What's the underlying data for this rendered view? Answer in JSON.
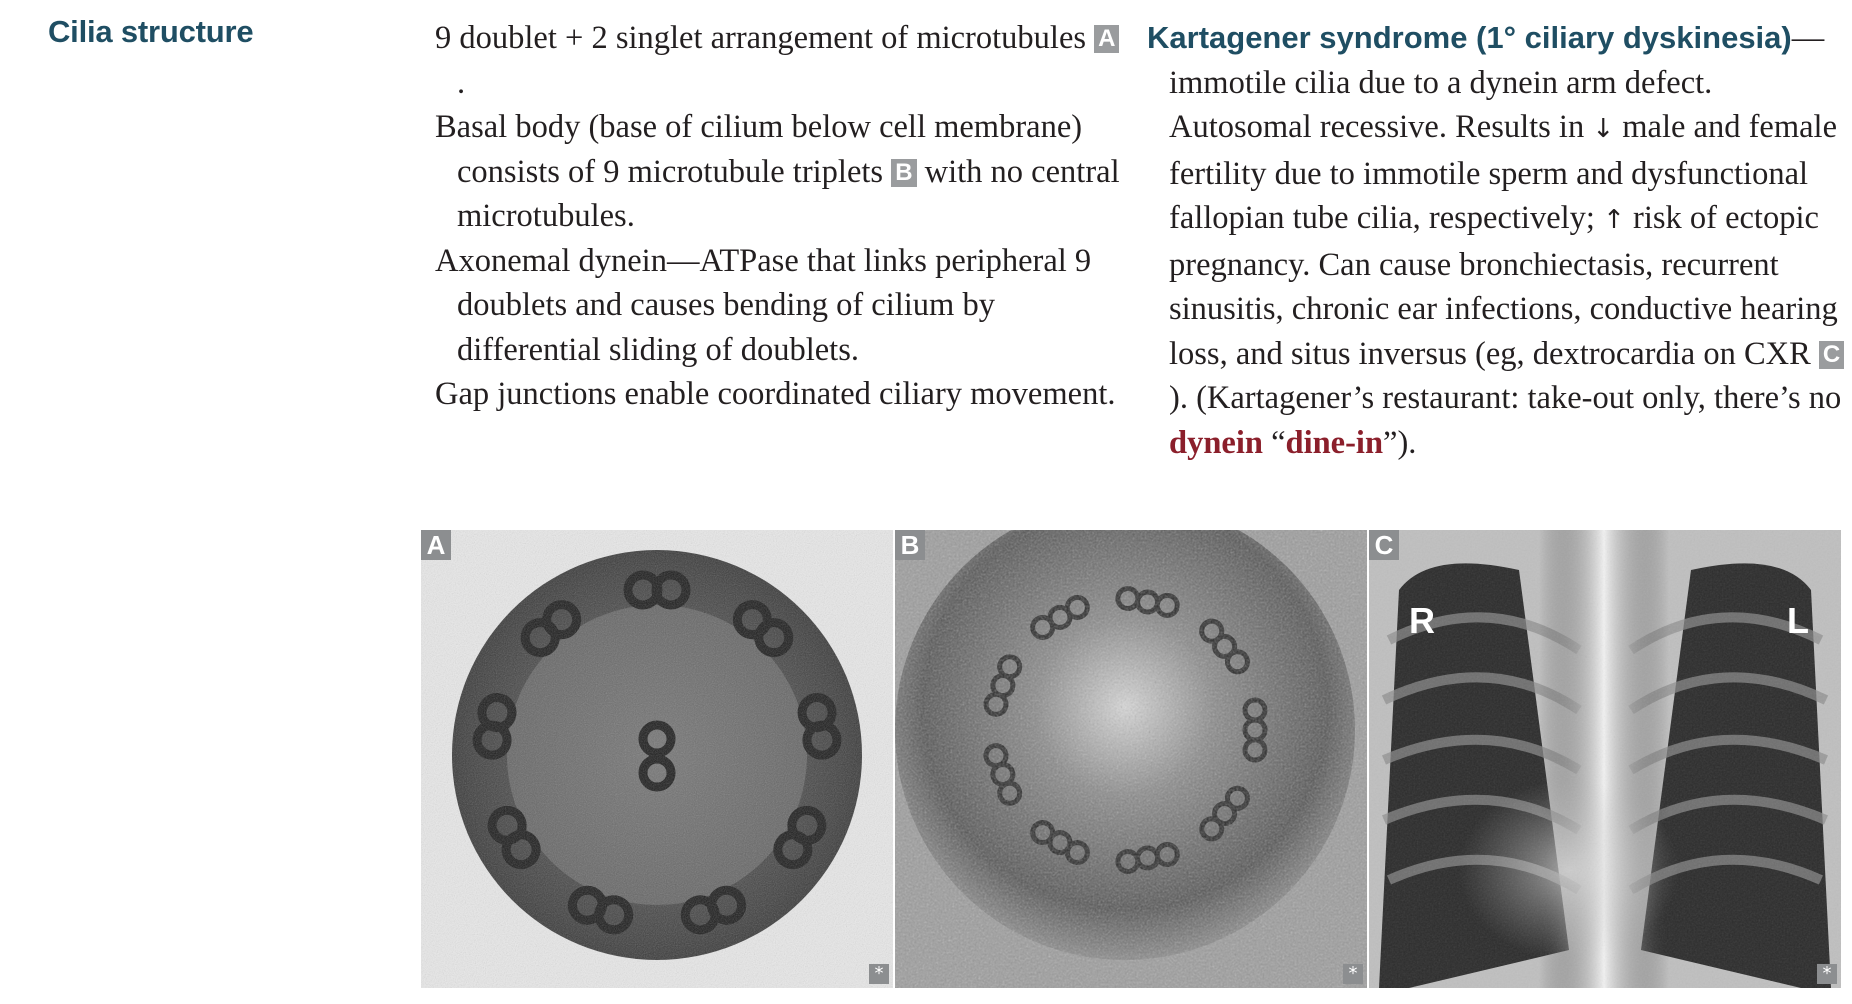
{
  "heading": "Cilia structure",
  "left_column": {
    "p1_text": "9 doublet + 2 singlet arrangement of microtubules",
    "p1_ref": "A",
    "p1_end": ".",
    "p2_text": "Basal body (base of cilium below cell membrane) consists of 9 microtubule triplets",
    "p2_ref": "B",
    "p2_end": " with no central microtubules.",
    "p3_text": "Axonemal dynein—ATPase that links peripheral 9 doublets and causes bending of cilium by differential sliding of doublets.",
    "p4_text": "Gap junctions enable coordinated ciliary movement."
  },
  "right_column": {
    "title": "Kartagener syndrome (1° ciliary dyskinesia)",
    "title_dash": "—",
    "text1": "immotile cilia due to a dynein arm defect. Autosomal recessive. Results in",
    "arrow_down": "↓",
    "text2": " male and female fertility due to immotile sperm and dysfunctional fallopian tube cilia, respectively; ",
    "arrow_up": "↑",
    "text3": " risk of ectopic pregnancy. Can cause bronchiectasis, recurrent sinusitis, chronic ear infections, conductive hearing loss, and situs inversus (eg, dextrocardia on CXR ",
    "ref_c": "C",
    "text4": "). (Kartagener’s restaurant: take-out only, there’s no ",
    "dynein": "dynein",
    "text5": " “",
    "dine_in": "dine-in",
    "text6": "”)."
  },
  "panels": {
    "a_label": "A",
    "b_label": "B",
    "c_label": "C",
    "star": "*",
    "xray_r": "R",
    "xray_l": "L"
  }
}
